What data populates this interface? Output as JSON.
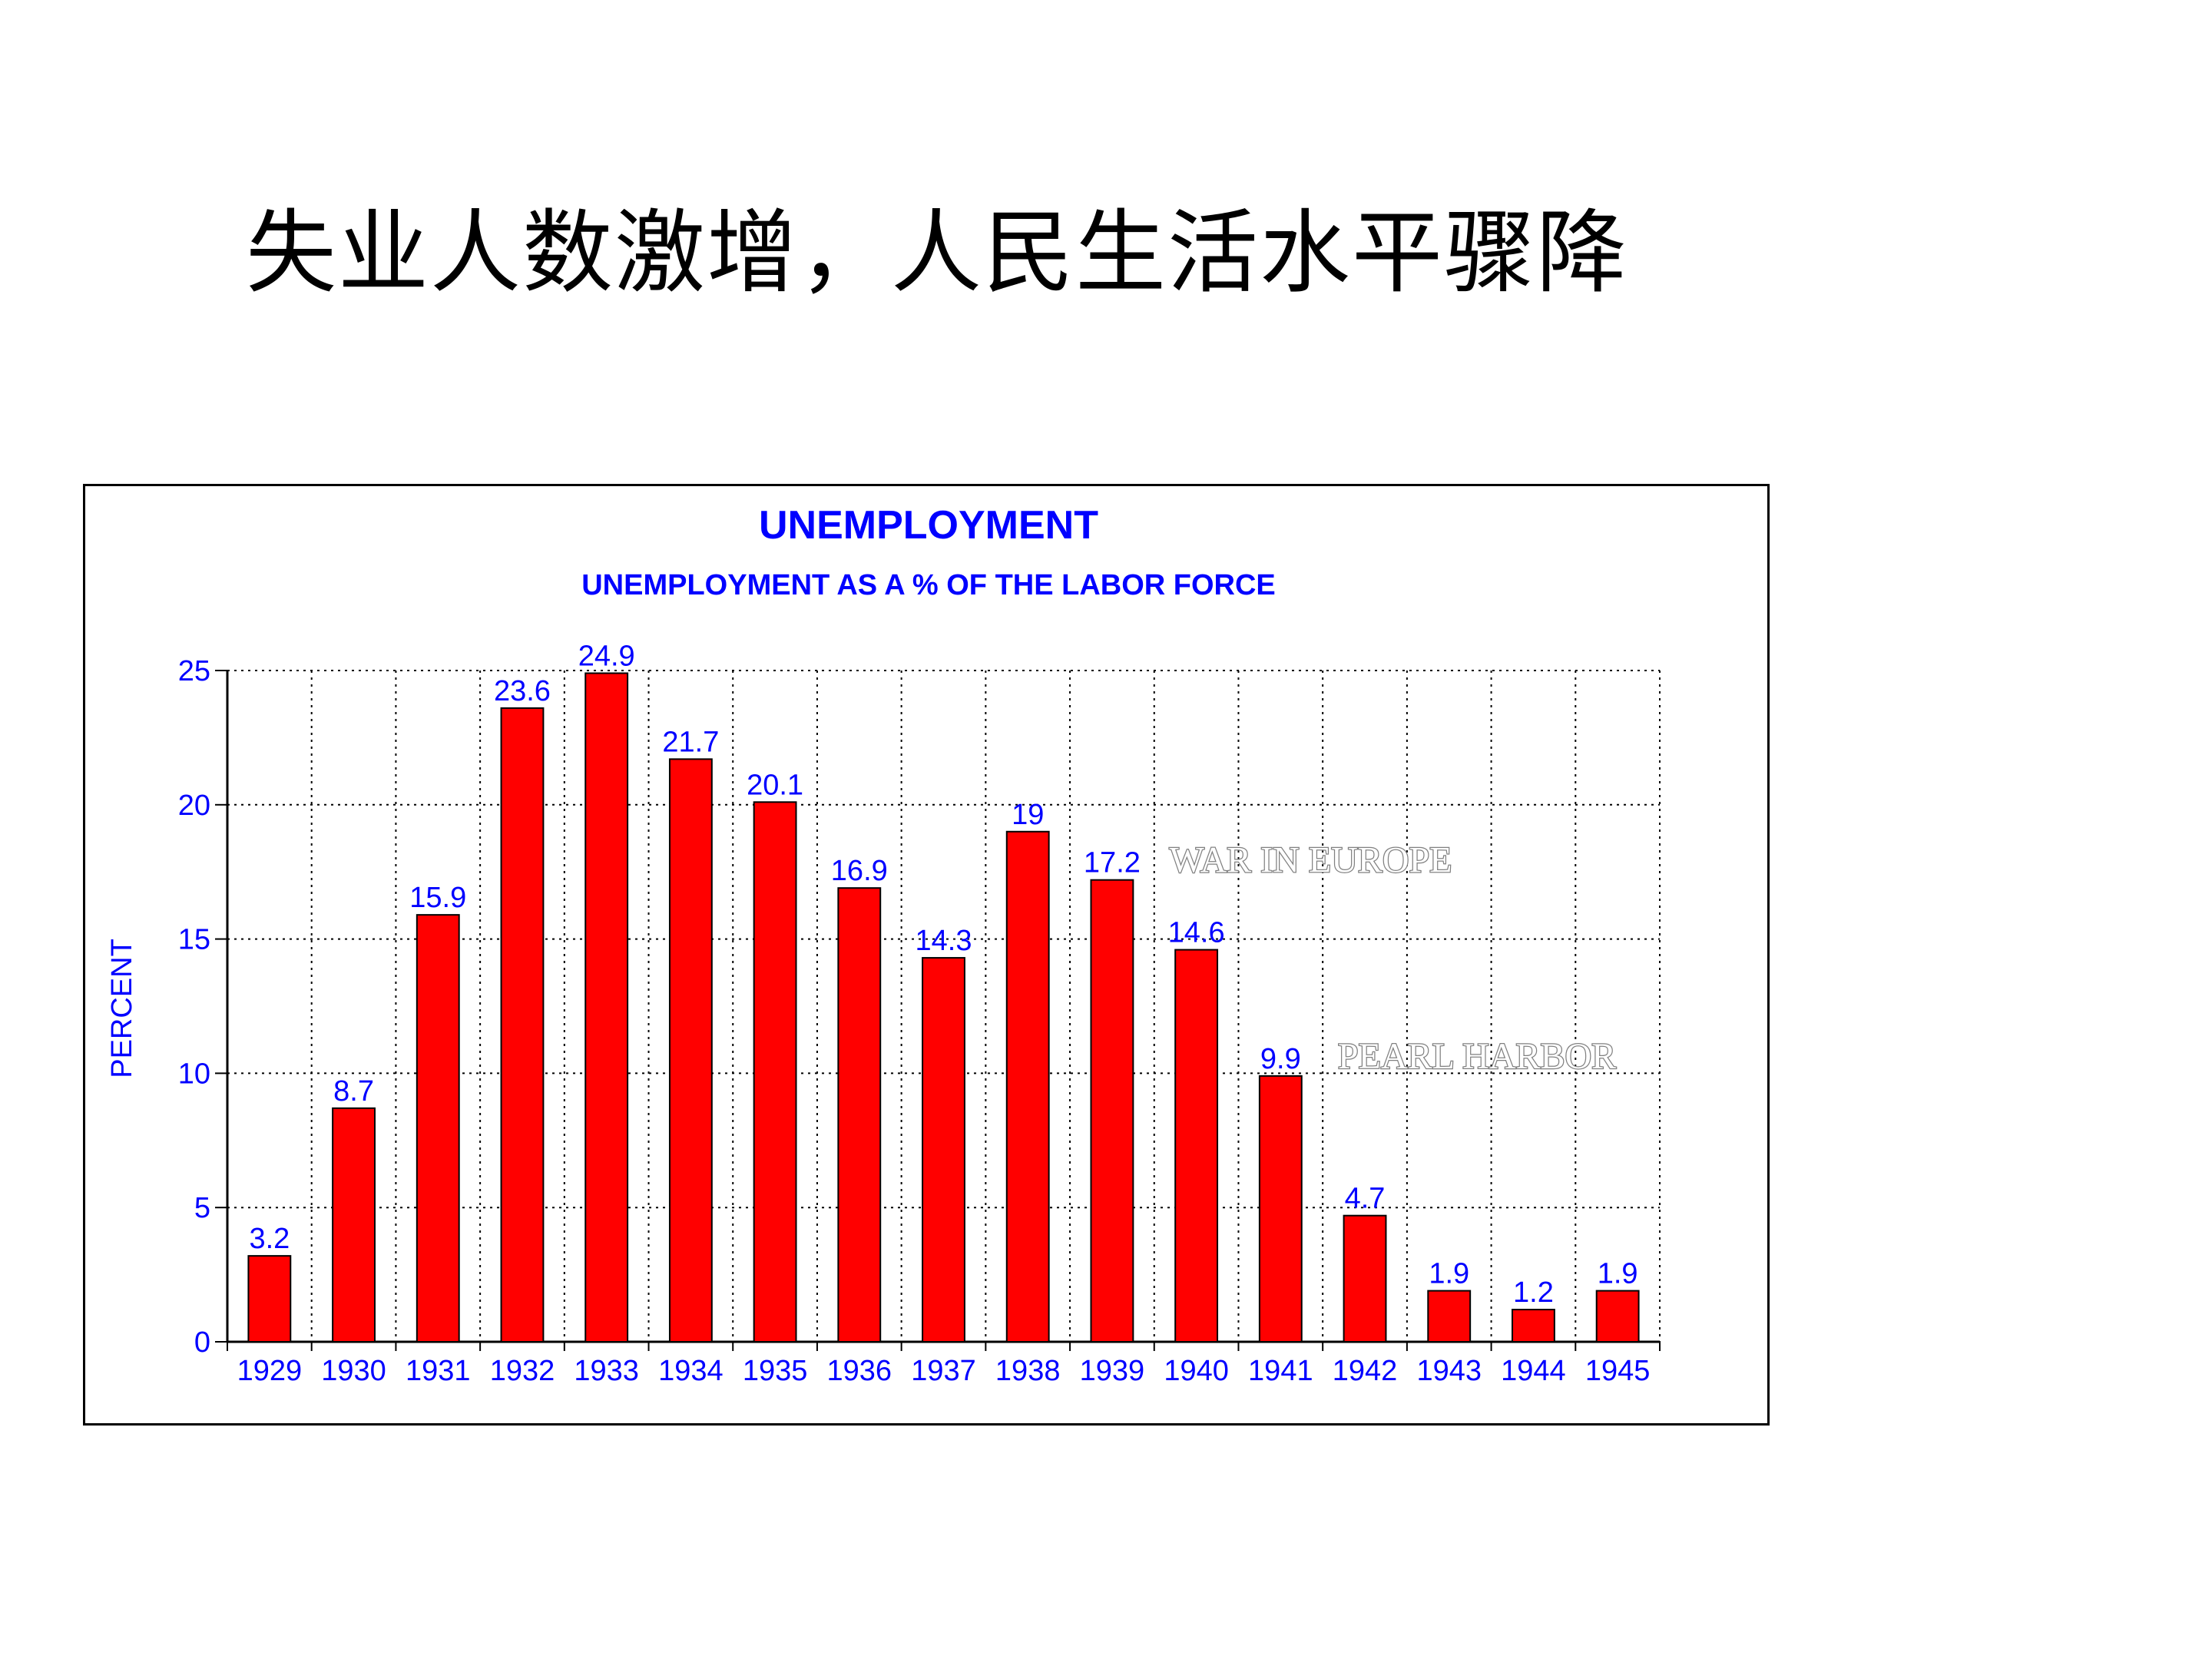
{
  "slide": {
    "title": "失业人数激增，人民生活水平骤降"
  },
  "chart_data": {
    "type": "bar",
    "title": "UNEMPLOYMENT",
    "subtitle": "UNEMPLOYMENT AS A % OF THE LABOR FORCE",
    "xlabel": "",
    "ylabel": "PERCENT",
    "categories": [
      "1929",
      "1930",
      "1931",
      "1932",
      "1933",
      "1934",
      "1935",
      "1936",
      "1937",
      "1938",
      "1939",
      "1940",
      "1941",
      "1942",
      "1943",
      "1944",
      "1945"
    ],
    "values": [
      3.2,
      8.7,
      15.9,
      23.6,
      24.9,
      21.7,
      20.1,
      16.9,
      14.3,
      19,
      17.2,
      14.6,
      9.9,
      4.7,
      1.9,
      1.2,
      1.9
    ],
    "value_labels": [
      "3.2",
      "8.7",
      "15.9",
      "23.6",
      "24.9",
      "21.7",
      "20.1",
      "16.9",
      "14.3",
      "19",
      "17.2",
      "14.6",
      "9.9",
      "4.7",
      "1.9",
      "1.2",
      "1.9"
    ],
    "ylim": [
      0,
      25
    ],
    "yticks": [
      0,
      5,
      10,
      15,
      20,
      25
    ],
    "grid": true,
    "annotations": [
      {
        "text": "WAR IN EUROPE",
        "anchor_category": "1939"
      },
      {
        "text": "PEARL HARBOR",
        "anchor_category": "1941"
      }
    ],
    "colors": {
      "bar": "#ff0000",
      "bar_outline": "#000000",
      "text": "#0000ff",
      "annotation": "#808080",
      "grid": "#000000"
    }
  }
}
